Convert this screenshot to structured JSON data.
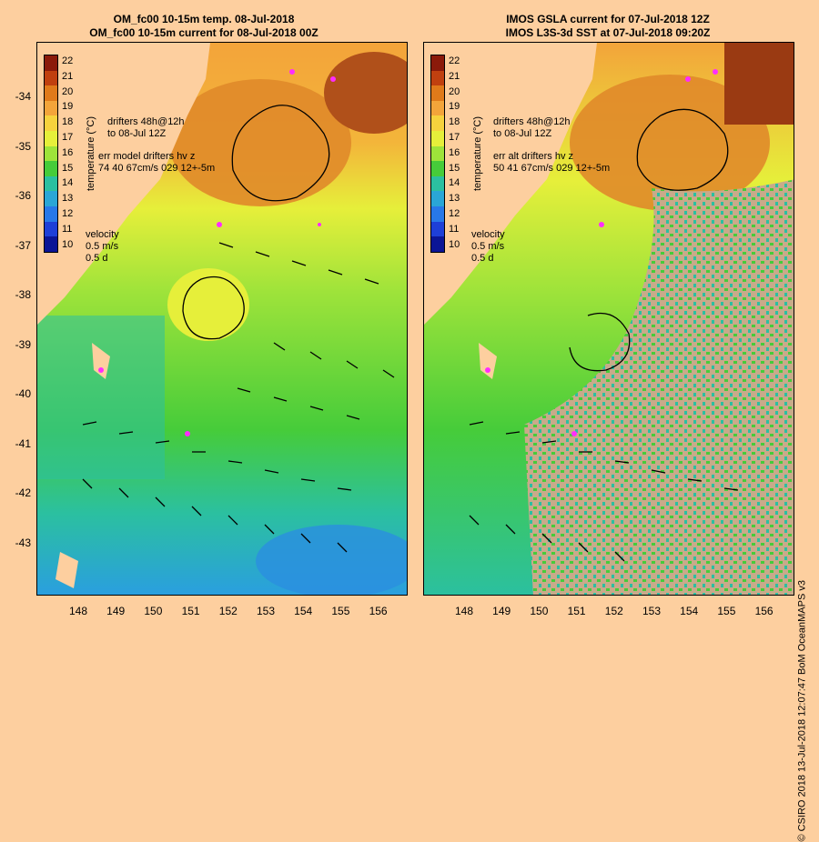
{
  "left_panel": {
    "title_line1": "OM_fc00 10-15m temp. 08-Jul-2018",
    "title_line2": "OM_fc00 10-15m current for 08-Jul-2018 00Z",
    "drifters_label": "drifters 48h@12h",
    "drifters_time": "to 08-Jul 12Z",
    "err_label": "err model drifters hv z",
    "err_values": "74 40 67cm/s 029 12+-5m"
  },
  "right_panel": {
    "title_line1": "IMOS GSLA current for 07-Jul-2018 12Z",
    "title_line2": "IMOS L3S-3d SST at 07-Jul-2018 09:20Z",
    "drifters_label": "drifters 48h@12h",
    "drifters_time": "to 08-Jul 12Z",
    "err_label": "err alt drifters hv z",
    "err_values": "50 41 67cm/s 029 12+-5m"
  },
  "velocity_legend": {
    "label": "velocity",
    "speed": "0.5 m/s",
    "duration": "0.5 d"
  },
  "colorbar": {
    "title": "temperature (°C)",
    "ticks": [
      "22",
      "21",
      "20",
      "19",
      "18",
      "17",
      "16",
      "15",
      "14",
      "13",
      "12",
      "11",
      "10"
    ],
    "colors": [
      "#8b1a0a",
      "#c0400f",
      "#e07a1a",
      "#f3a43a",
      "#f6d23d",
      "#e6ef3a",
      "#9ee33a",
      "#46cc3a",
      "#2bc0a0",
      "#2aa6d6",
      "#2878e8",
      "#1e3fd8",
      "#0b1596"
    ]
  },
  "axes": {
    "lat_ticks": [
      "-34",
      "-35",
      "-36",
      "-37",
      "-38",
      "-39",
      "-40",
      "-41",
      "-42",
      "-43"
    ],
    "lon_ticks": [
      "148",
      "149",
      "150",
      "151",
      "152",
      "153",
      "154",
      "155",
      "156"
    ]
  },
  "credit": "© CSIRO 2018  13-Jul-2018 12:07:47 BoM OceanMAPS v3",
  "colors": {
    "land": "#fdcf9f",
    "cloud": "#c8aa8a",
    "drifter": "#ff2cff"
  }
}
